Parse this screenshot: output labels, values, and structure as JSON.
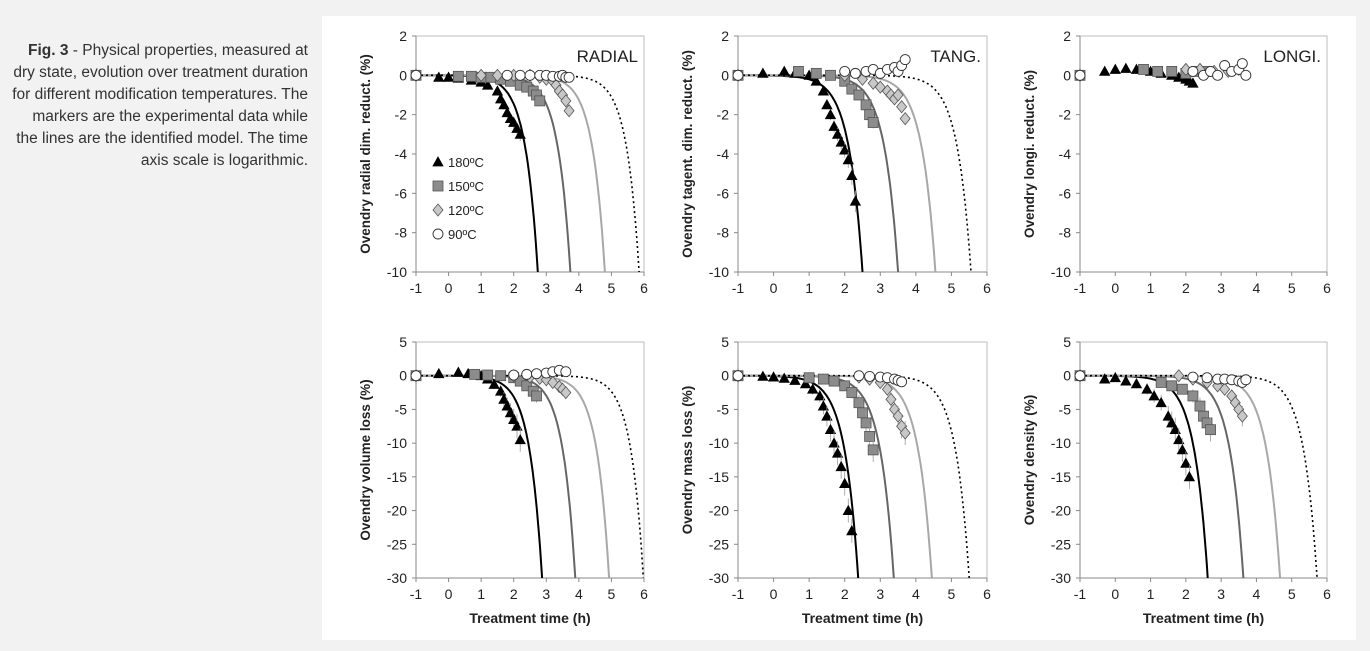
{
  "caption": {
    "fig_label": "Fig. 3",
    "text": " - Physical properties, measured at dry state, evolution over treatment duration for different modification temperatures. The markers are the experimental data while the lines are the identified model. The time axis scale is logarithmic."
  },
  "legend": [
    {
      "marker": "triangle",
      "label": "180ºC",
      "color": "#000000"
    },
    {
      "marker": "square",
      "label": "150ºC",
      "color": "#8c8c8c"
    },
    {
      "marker": "diamond",
      "label": "120ºC",
      "color": "#c8c8c8"
    },
    {
      "marker": "circle",
      "label": "90ºC",
      "color": "#ffffff"
    }
  ],
  "chart_data": [
    {
      "type": "scatter",
      "title": "RADIAL",
      "ylabel": "Ovendry radial dim. reduct. (%)",
      "xlabel": "",
      "xlim": [
        -1,
        6
      ],
      "ylim": [
        -10,
        2
      ],
      "xticks": [
        "-1",
        "0",
        "1",
        "2",
        "3",
        "4",
        "5",
        "6"
      ],
      "yticks": [
        "2",
        "0",
        "-2",
        "-4",
        "-6",
        "-8",
        "-10"
      ],
      "series": [
        {
          "name": "180ºC",
          "marker": "triangle",
          "x": [
            -1,
            -0.3,
            0,
            0.3,
            0.7,
            1,
            1.2,
            1.5,
            1.6,
            1.7,
            1.8,
            1.9,
            2.0,
            2.1,
            2.2
          ],
          "y": [
            0,
            -0.1,
            -0.1,
            -0.15,
            -0.25,
            -0.35,
            -0.5,
            -0.8,
            -1.2,
            -1.5,
            -1.9,
            -2.2,
            -2.4,
            -2.7,
            -3.0
          ]
        },
        {
          "name": "150ºC",
          "marker": "square",
          "x": [
            -1,
            0.3,
            0.7,
            1,
            1.3,
            1.6,
            1.9,
            2.2,
            2.4,
            2.6,
            2.7,
            2.8
          ],
          "y": [
            0,
            -0.05,
            -0.05,
            -0.1,
            -0.1,
            -0.2,
            -0.3,
            -0.5,
            -0.6,
            -0.8,
            -1.0,
            -1.3
          ]
        },
        {
          "name": "120ºC",
          "marker": "diamond",
          "x": [
            -1,
            1,
            1.5,
            2,
            2.5,
            2.8,
            3,
            3.2,
            3.3,
            3.4,
            3.5,
            3.6,
            3.7
          ],
          "y": [
            0,
            0,
            0,
            0,
            0,
            -0.1,
            -0.2,
            -0.3,
            -0.5,
            -0.8,
            -1.0,
            -1.3,
            -1.8
          ]
        },
        {
          "name": "90ºC",
          "marker": "circle",
          "x": [
            -1,
            1.8,
            2.2,
            2.5,
            2.8,
            3,
            3.2,
            3.4,
            3.5,
            3.6,
            3.7
          ],
          "y": [
            0,
            0,
            0,
            0,
            0,
            0,
            -0.05,
            -0.05,
            0,
            -0.1,
            -0.1
          ]
        }
      ],
      "models": [
        {
          "series": "180ºC",
          "x50": 2.74,
          "dashed": false
        },
        {
          "series": "150ºC",
          "x50": 3.74,
          "dashed": false
        },
        {
          "series": "120ºC",
          "x50": 4.8,
          "dashed": false
        },
        {
          "series": "90ºC",
          "x50": 5.85,
          "dashed": true
        }
      ]
    },
    {
      "type": "scatter",
      "title": "TANG.",
      "ylabel": "Ovendry tagent. dim. reduct. (%)",
      "xlabel": "",
      "xlim": [
        -1,
        6
      ],
      "ylim": [
        -10,
        2
      ],
      "xticks": [
        "-1",
        "0",
        "1",
        "2",
        "3",
        "4",
        "5",
        "6"
      ],
      "yticks": [
        "2",
        "0",
        "-2",
        "-4",
        "-6",
        "-8",
        "-10"
      ],
      "series": [
        {
          "name": "180ºC",
          "marker": "triangle",
          "x": [
            -1,
            -0.3,
            0.3,
            0.6,
            1,
            1.2,
            1.4,
            1.5,
            1.6,
            1.7,
            1.8,
            1.9,
            2.0,
            2.1,
            2.2,
            2.3
          ],
          "y": [
            0,
            0.1,
            0.2,
            0.1,
            0,
            -0.3,
            -0.8,
            -1.5,
            -2.0,
            -2.6,
            -3.0,
            -3.4,
            -3.8,
            -4.3,
            -5.1,
            -6.4
          ]
        },
        {
          "name": "150ºC",
          "marker": "square",
          "x": [
            -1,
            0.7,
            1.2,
            1.6,
            2,
            2.2,
            2.4,
            2.6,
            2.7,
            2.8
          ],
          "y": [
            0,
            0.2,
            0.1,
            0,
            -0.3,
            -0.7,
            -1.0,
            -1.5,
            -2.0,
            -2.4
          ]
        },
        {
          "name": "120ºC",
          "marker": "diamond",
          "x": [
            -1,
            2,
            2.5,
            2.8,
            3,
            3.2,
            3.3,
            3.4,
            3.5,
            3.6,
            3.7
          ],
          "y": [
            0,
            0,
            -0.2,
            -0.4,
            -0.6,
            -0.8,
            -1.0,
            -1.2,
            -1.0,
            -1.6,
            -2.2
          ]
        },
        {
          "name": "90ºC",
          "marker": "circle",
          "x": [
            -1,
            2,
            2.3,
            2.6,
            2.8,
            3,
            3.2,
            3.4,
            3.5,
            3.6,
            3.7
          ],
          "y": [
            0,
            0.2,
            0.1,
            0.2,
            0.3,
            0.1,
            0.3,
            0.4,
            0.2,
            0.5,
            0.8
          ]
        }
      ],
      "models": [
        {
          "series": "180ºC",
          "x50": 2.5,
          "dashed": false
        },
        {
          "series": "150ºC",
          "x50": 3.5,
          "dashed": false
        },
        {
          "series": "120ºC",
          "x50": 4.55,
          "dashed": false
        },
        {
          "series": "90ºC",
          "x50": 5.55,
          "dashed": true
        }
      ]
    },
    {
      "type": "scatter",
      "title": "LONGI.",
      "ylabel": "Ovendry longi. reduct. (%)",
      "xlabel": "",
      "xlim": [
        -1,
        6
      ],
      "ylim": [
        -10,
        2
      ],
      "xticks": [
        "-1",
        "0",
        "1",
        "2",
        "3",
        "4",
        "5",
        "6"
      ],
      "yticks": [
        "2",
        "0",
        "-2",
        "-4",
        "-6",
        "-8",
        "-10"
      ],
      "series": [
        {
          "name": "180ºC",
          "marker": "triangle",
          "x": [
            -0.3,
            0,
            0.3,
            0.6,
            1,
            1.3,
            1.6,
            1.8,
            2.0,
            2.1,
            2.2
          ],
          "y": [
            0.2,
            0.3,
            0.35,
            0.3,
            0.2,
            0.1,
            0,
            -0.1,
            -0.2,
            -0.3,
            -0.4
          ]
        },
        {
          "name": "150ºC",
          "marker": "square",
          "x": [
            -1,
            0.8,
            1.2,
            1.6,
            2,
            2.3,
            2.6
          ],
          "y": [
            0,
            0.3,
            0.2,
            0.2,
            0.1,
            0.2,
            0.2
          ]
        },
        {
          "name": "120ºC",
          "marker": "diamond",
          "x": [
            -1,
            2,
            2.4,
            2.8,
            3.2,
            3.5
          ],
          "y": [
            0,
            0.3,
            0.3,
            0.2,
            0.2,
            0.3
          ]
        },
        {
          "name": "90ºC",
          "marker": "circle",
          "x": [
            -1,
            2.2,
            2.5,
            2.7,
            2.9,
            3.1,
            3.3,
            3.5,
            3.6,
            3.7
          ],
          "y": [
            0,
            0.2,
            0,
            0.2,
            0,
            0.5,
            0.2,
            0.3,
            0.6,
            0
          ]
        }
      ],
      "models": []
    },
    {
      "type": "scatter",
      "title": "",
      "ylabel": "Ovendry volume loss (%)",
      "xlabel": "Treatment time (h)",
      "xlim": [
        -1,
        6
      ],
      "ylim": [
        -30,
        5
      ],
      "xticks": [
        "-1",
        "0",
        "1",
        "2",
        "3",
        "4",
        "5",
        "6"
      ],
      "yticks": [
        "5",
        "0",
        "-5",
        "-10",
        "-15",
        "-20",
        "-25",
        "-30"
      ],
      "series": [
        {
          "name": "180ºC",
          "marker": "triangle",
          "x": [
            -1,
            -0.3,
            0.3,
            0.6,
            1,
            1.2,
            1.4,
            1.6,
            1.7,
            1.8,
            1.9,
            2.0,
            2.1,
            2.2
          ],
          "y": [
            0,
            0.3,
            0.5,
            0.3,
            0,
            -0.5,
            -1.3,
            -2.3,
            -3.5,
            -4.5,
            -5.5,
            -6.5,
            -7.5,
            -9.5
          ]
        },
        {
          "name": "150ºC",
          "marker": "square",
          "x": [
            -1,
            0.8,
            1.2,
            1.6,
            2,
            2.2,
            2.4,
            2.6,
            2.7
          ],
          "y": [
            0,
            0.2,
            0.1,
            0,
            -0.3,
            -0.8,
            -1.5,
            -2.3,
            -3.0
          ]
        },
        {
          "name": "120ºC",
          "marker": "diamond",
          "x": [
            -1,
            2,
            2.5,
            2.8,
            3,
            3.2,
            3.4,
            3.5,
            3.6
          ],
          "y": [
            0,
            0,
            -0.2,
            -0.4,
            -0.6,
            -1.0,
            -1.6,
            -2.0,
            -2.5
          ]
        },
        {
          "name": "90ºC",
          "marker": "circle",
          "x": [
            -1,
            2,
            2.4,
            2.7,
            3,
            3.2,
            3.4,
            3.6
          ],
          "y": [
            0,
            0.1,
            0.2,
            0.3,
            0.4,
            0.6,
            0.8,
            0.6
          ]
        }
      ],
      "models": [
        {
          "series": "180ºC",
          "x50": 2.87,
          "dashed": false
        },
        {
          "series": "150ºC",
          "x50": 3.89,
          "dashed": false
        },
        {
          "series": "120ºC",
          "x50": 4.93,
          "dashed": false
        },
        {
          "series": "90ºC",
          "x50": 5.98,
          "dashed": true
        }
      ]
    },
    {
      "type": "scatter",
      "title": "",
      "ylabel": "Ovendry mass loss (%)",
      "xlabel": "Treatment time (h)",
      "xlim": [
        -1,
        6
      ],
      "ylim": [
        -30,
        5
      ],
      "xticks": [
        "-1",
        "0",
        "1",
        "2",
        "3",
        "4",
        "5",
        "6"
      ],
      "yticks": [
        "5",
        "0",
        "-5",
        "-10",
        "-15",
        "-20",
        "-25",
        "-30"
      ],
      "series": [
        {
          "name": "180ºC",
          "marker": "triangle",
          "x": [
            -1,
            -0.3,
            0,
            0.3,
            0.6,
            0.9,
            1.1,
            1.3,
            1.4,
            1.5,
            1.6,
            1.7,
            1.8,
            1.9,
            2.0,
            2.1,
            2.2
          ],
          "y": [
            0,
            -0.1,
            -0.2,
            -0.4,
            -0.7,
            -1.2,
            -2.0,
            -3.0,
            -4.5,
            -6.0,
            -8.0,
            -10.0,
            -11.5,
            -13.5,
            -16.0,
            -20.0,
            -23.0
          ]
        },
        {
          "name": "150ºC",
          "marker": "square",
          "x": [
            -1,
            1,
            1.4,
            1.7,
            2,
            2.2,
            2.4,
            2.5,
            2.6,
            2.7,
            2.8
          ],
          "y": [
            0,
            -0.3,
            -0.5,
            -0.8,
            -1.5,
            -2.5,
            -4.0,
            -5.5,
            -7.0,
            -9.0,
            -11.0
          ]
        },
        {
          "name": "120ºC",
          "marker": "diamond",
          "x": [
            -1,
            2.4,
            2.7,
            3,
            3.2,
            3.3,
            3.4,
            3.5,
            3.6,
            3.7
          ],
          "y": [
            0,
            -0.2,
            -0.5,
            -1.0,
            -2.0,
            -3.5,
            -5.0,
            -6.0,
            -7.5,
            -8.5
          ]
        },
        {
          "name": "90ºC",
          "marker": "circle",
          "x": [
            -1,
            2.4,
            2.7,
            3,
            3.2,
            3.4,
            3.5,
            3.6
          ],
          "y": [
            0,
            0,
            -0.1,
            -0.2,
            -0.3,
            -0.5,
            -0.7,
            -0.9
          ]
        }
      ],
      "models": [
        {
          "series": "180ºC",
          "x50": 2.38,
          "dashed": false
        },
        {
          "series": "150ºC",
          "x50": 3.38,
          "dashed": false
        },
        {
          "series": "120ºC",
          "x50": 4.45,
          "dashed": false
        },
        {
          "series": "90ºC",
          "x50": 5.5,
          "dashed": true
        }
      ]
    },
    {
      "type": "scatter",
      "title": "",
      "ylabel": "Ovendry density (%)",
      "xlabel": "Treatment time (h)",
      "xlim": [
        -1,
        6
      ],
      "ylim": [
        -30,
        5
      ],
      "xticks": [
        "-1",
        "0",
        "1",
        "2",
        "3",
        "4",
        "5",
        "6"
      ],
      "yticks": [
        "5",
        "0",
        "-5",
        "-10",
        "-15",
        "-20",
        "-25",
        "-30"
      ],
      "series": [
        {
          "name": "180ºC",
          "marker": "triangle",
          "x": [
            -1,
            -0.3,
            0,
            0.3,
            0.6,
            0.9,
            1.1,
            1.3,
            1.5,
            1.6,
            1.7,
            1.8,
            1.9,
            2.0,
            2.1
          ],
          "y": [
            0,
            -0.5,
            -0.3,
            -0.8,
            -1.2,
            -2.0,
            -3.0,
            -4.0,
            -6.0,
            -7.0,
            -8.0,
            -9.5,
            -11.0,
            -13.0,
            -15.0
          ]
        },
        {
          "name": "150ºC",
          "marker": "square",
          "x": [
            -1,
            1.3,
            1.6,
            1.9,
            2.2,
            2.4,
            2.5,
            2.6,
            2.7
          ],
          "y": [
            0,
            -1.0,
            -1.5,
            -2.0,
            -3.0,
            -4.5,
            -6.0,
            -7.0,
            -8.0
          ]
        },
        {
          "name": "120ºC",
          "marker": "diamond",
          "x": [
            -1,
            1.8,
            2.2,
            2.6,
            2.9,
            3.1,
            3.3,
            3.4,
            3.5,
            3.6
          ],
          "y": [
            0,
            0,
            -0.5,
            -1.0,
            -1.5,
            -2.0,
            -3.0,
            -4.0,
            -5.0,
            -6.0
          ]
        },
        {
          "name": "90ºC",
          "marker": "circle",
          "x": [
            -1,
            2.2,
            2.6,
            2.9,
            3.1,
            3.3,
            3.5,
            3.6,
            3.7
          ],
          "y": [
            0,
            -0.2,
            -0.3,
            -0.5,
            -0.5,
            -0.6,
            -0.8,
            -1.0,
            -0.6
          ]
        }
      ],
      "models": [
        {
          "series": "180ºC",
          "x50": 2.62,
          "dashed": false
        },
        {
          "series": "150ºC",
          "x50": 3.63,
          "dashed": false
        },
        {
          "series": "120ºC",
          "x50": 4.67,
          "dashed": false
        },
        {
          "series": "90ºC",
          "x50": 5.72,
          "dashed": true
        }
      ]
    }
  ]
}
